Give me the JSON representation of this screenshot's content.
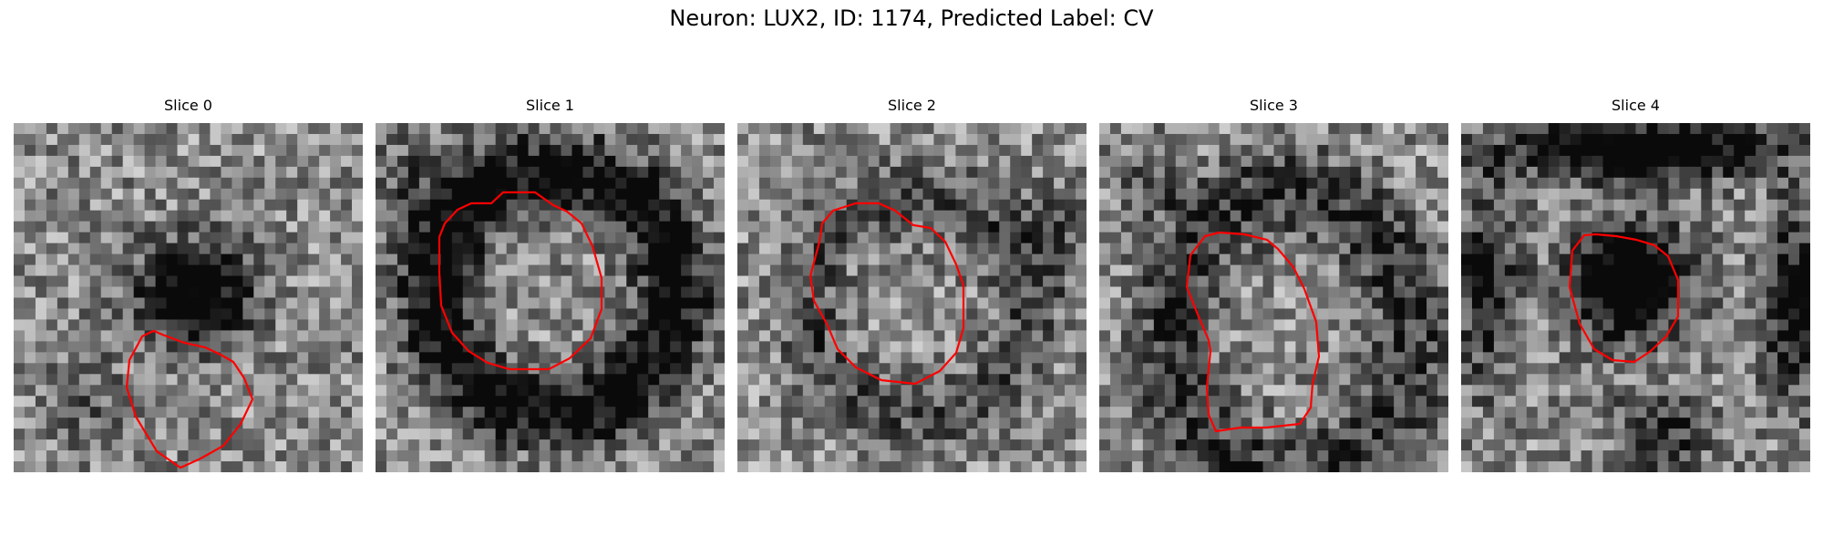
{
  "figure": {
    "title": "Neuron: LUX2, ID: 1174, Predicted Label: CV"
  },
  "panels": [
    {
      "title": "Slice 0"
    },
    {
      "title": "Slice 1"
    },
    {
      "title": "Slice 2"
    },
    {
      "title": "Slice 3"
    },
    {
      "title": "Slice 4"
    }
  ],
  "colors": {
    "contour": "#ff0000",
    "background": "#ffffff"
  }
}
